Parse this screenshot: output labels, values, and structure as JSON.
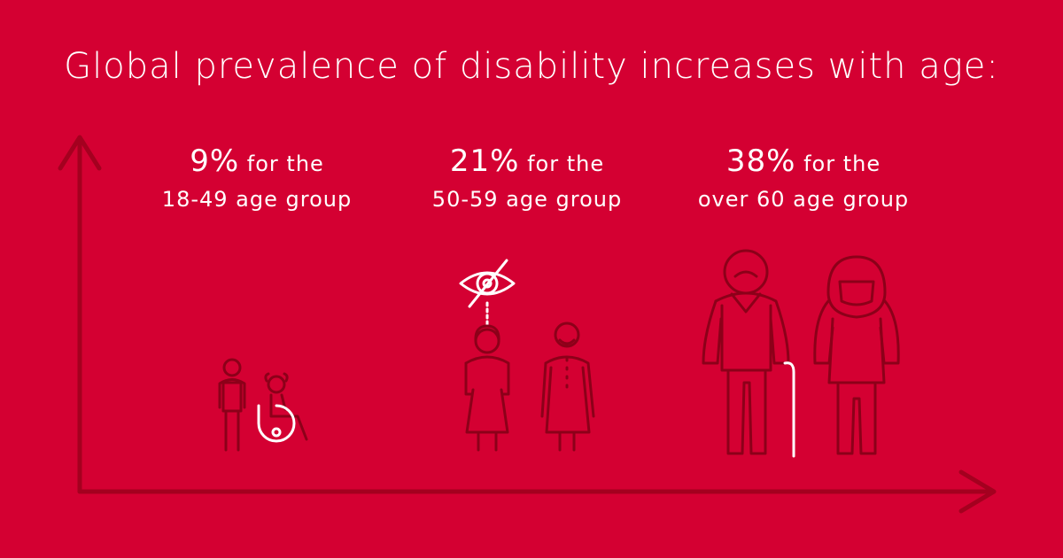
{
  "title": "Global prevalence of disability increases with age:",
  "chart_data": {
    "type": "bar",
    "title": "Global prevalence of disability increases with age:",
    "categories": [
      "18-49 age group",
      "50-59 age group",
      "over 60 age group"
    ],
    "values": [
      9,
      21,
      38
    ],
    "unit": "%",
    "labels": [
      {
        "value_text": "9%",
        "suffix": "for the",
        "group_text": "18-49 age group"
      },
      {
        "value_text": "21%",
        "suffix": "for the",
        "group_text": "50-59 age group"
      },
      {
        "value_text": "38%",
        "suffix": "for the",
        "group_text": "over 60 age group"
      }
    ]
  },
  "colors": {
    "background": "#d40032",
    "text": "#ffffff",
    "figure_outline": "#8c0019",
    "axis": "#a4001f",
    "highlight": "#ffffff"
  },
  "icons": [
    "child-icon",
    "child-wheelchair-icon",
    "vision-impaired-icon",
    "older-woman-icon",
    "older-man-icon",
    "elderly-man-icon",
    "walking-cane-icon",
    "elderly-woman-icon"
  ]
}
